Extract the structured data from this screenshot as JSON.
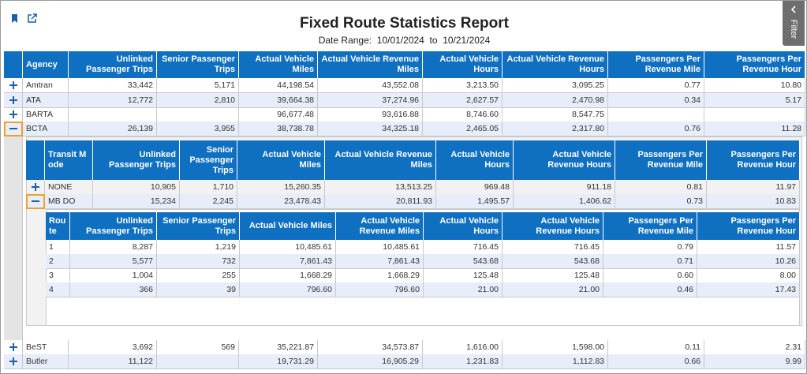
{
  "header": {
    "title": "Fixed Route Statistics Report",
    "date_range_label": "Date Range:",
    "start_date": "10/01/2024",
    "to": "to",
    "end_date": "10/21/2024"
  },
  "filter_tab": "Filter",
  "agency_table": {
    "columns": [
      "Agency",
      "Unlinked Passenger Trips",
      "Senior Passenger Trips",
      "Actual Vehicle Miles",
      "Actual Vehicle Revenue Miles",
      "Actual Vehicle Hours",
      "Actual Vehicle Revenue Hours",
      "Passengers Per Revenue Mile",
      "Passengers Per Revenue Hour"
    ],
    "rows": [
      [
        "Amtran",
        "33,442",
        "5,171",
        "44,198.54",
        "43,552.08",
        "3,213.50",
        "3,095.25",
        "0.77",
        "10.80"
      ],
      [
        "ATA",
        "12,772",
        "2,810",
        "39,664.38",
        "37,274.96",
        "2,627.57",
        "2,470.98",
        "0.34",
        "5.17"
      ],
      [
        "BARTA",
        null,
        null,
        "96,677.48",
        "93,616.88",
        "8,746.60",
        "8,547.75",
        null,
        null
      ],
      [
        "BCTA",
        "26,139",
        "3,955",
        "38,738.78",
        "34,325.18",
        "2,465.05",
        "2,317.80",
        "0.76",
        "11.28"
      ],
      [
        "BeST",
        "3,692",
        "569",
        "35,221.87",
        "34,573.87",
        "1,616.00",
        "1,598.00",
        "0.11",
        "2.31"
      ],
      [
        "Butler",
        "11,122",
        null,
        "19,731.29",
        "16,905.29",
        "1,231.83",
        "1,112.83",
        "0.66",
        "9.99"
      ]
    ]
  },
  "mode_table": {
    "columns": [
      "Transit Mode",
      "Unlinked Passenger Trips",
      "Senior Passenger Trips",
      "Actual Vehicle Miles",
      "Actual Vehicle Revenue Miles",
      "Actual Vehicle Hours",
      "Actual Vehicle Revenue Hours",
      "Passengers Per Revenue Mile",
      "Passengers Per Revenue Hour"
    ],
    "rows": [
      [
        "NONE",
        "10,905",
        "1,710",
        "15,260.35",
        "13,513.25",
        "969.48",
        "911.18",
        "0.81",
        "11.97"
      ],
      [
        "MB DO",
        "15,234",
        "2,245",
        "23,478.43",
        "20,811.93",
        "1,495.57",
        "1,406.62",
        "0.73",
        "10.83"
      ]
    ]
  },
  "route_table": {
    "columns": [
      "Route",
      "Unlinked Passenger Trips",
      "Senior Passenger Trips",
      "Actual Vehicle Miles",
      "Actual Vehicle Revenue Miles",
      "Actual Vehicle Hours",
      "Actual Vehicle Revenue Hours",
      "Passengers Per Revenue Mile",
      "Passengers Per Revenue Hour"
    ],
    "rows": [
      [
        "1",
        "8,287",
        "1,219",
        "10,485.61",
        "10,485.61",
        "716.45",
        "716.45",
        "0.79",
        "11.57"
      ],
      [
        "2",
        "5,577",
        "732",
        "7,861.43",
        "7,861.43",
        "543.68",
        "543.68",
        "0.71",
        "10.26"
      ],
      [
        "3",
        "1,004",
        "255",
        "1,668.29",
        "1,668.29",
        "125.48",
        "125.48",
        "0.60",
        "8.00"
      ],
      [
        "4",
        "366",
        "39",
        "796.60",
        "796.60",
        "21.00",
        "21.00",
        "0.46",
        "17.43"
      ]
    ]
  }
}
